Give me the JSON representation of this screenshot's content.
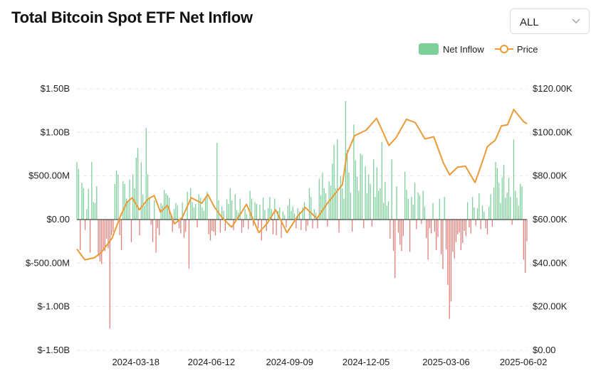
{
  "title": "Total Bitcoin Spot ETF Net Inflow",
  "range_select": {
    "value": "ALL",
    "icon": "chevron-down-icon"
  },
  "legend": {
    "net_inflow": "Net Inflow",
    "price": "Price"
  },
  "colors": {
    "inflow": "#7ccf99",
    "outflow": "#e07d78",
    "price": "#eb9a35",
    "grid": "#e5e7eb"
  },
  "chart_data": {
    "type": "bar",
    "x_tick_labels": [
      "2024-03-18",
      "2024-06-12",
      "2024-09-09",
      "2024-12-05",
      "2025-03-06",
      "2025-06-02"
    ],
    "x_range": [
      "2024-01-11",
      "2025-06-06"
    ],
    "y_left": {
      "label": "",
      "ticks": [
        "$1.50B",
        "$1.00B",
        "$500.00M",
        "$0.00",
        "$-500.00M",
        "$-1.00B",
        "$-1.50B"
      ],
      "range": [
        -1.5,
        1.5
      ],
      "unit": "B USD"
    },
    "y_right": {
      "label": "",
      "ticks": [
        "$120.00K",
        "$100.00K",
        "$80.00K",
        "$60.00K",
        "$40.00K",
        "$20.00K",
        "$0.00"
      ],
      "range": [
        0,
        120
      ],
      "unit": "K USD"
    },
    "grid": true,
    "legend_position": "top-right",
    "series": [
      {
        "name": "Net Inflow",
        "type": "bar",
        "date_range": [
          "2024-01-11",
          "2025-06-06"
        ],
        "values": [
          0.66,
          0.58,
          -0.35,
          0.42,
          0.36,
          -0.12,
          0.12,
          0.35,
          -0.38,
          0.66,
          0.2,
          0.19,
          0.38,
          -0.42,
          -0.48,
          -0.51,
          -0.35,
          -0.36,
          -0.22,
          -0.33,
          -1.25,
          -0.18,
          -0.14,
          0.41,
          0.56,
          0.52,
          -0.18,
          -0.35,
          0.44,
          0.41,
          0.24,
          0.22,
          0.46,
          -0.26,
          0.52,
          0.36,
          0.71,
          0.82,
          -0.18,
          0.66,
          0.29,
          0.16,
          1.05,
          0.52,
          0.24,
          -0.06,
          -0.26,
          0.22,
          -0.38,
          -0.1,
          -0.18,
          0.19,
          0.16,
          0.34,
          0.3,
          0.28,
          0.25,
          0.06,
          -0.14,
          0.12,
          0.19,
          0.16,
          -0.1,
          -0.16,
          0.2,
          -0.21,
          -0.14,
          0.32,
          -0.56,
          0.36,
          0.2,
          0.14,
          0.18,
          -0.09,
          0.29,
          0.25,
          0.14,
          0.1,
          0.25,
          0.32,
          -0.17,
          -0.24,
          -0.13,
          -0.14,
          -0.18,
          0.88,
          0.22,
          -0.15,
          0.15,
          0.1,
          -0.13,
          0.23,
          0.18,
          0.36,
          0.22,
          -0.12,
          0.29,
          0.11,
          0.08,
          0.24,
          -0.15,
          -0.09,
          0.12,
          0.06,
          -0.11,
          0.33,
          0.24,
          -0.07,
          0.2,
          0.18,
          -0.1,
          0.17,
          -0.24,
          0.25,
          0.11,
          -0.13,
          0.13,
          0.26,
          0.12,
          -0.17,
          0.24,
          -0.18,
          0.1,
          0.14,
          -0.21,
          0.09,
          0.05,
          -0.09,
          0.16,
          0.24,
          0.1,
          0.15,
          0.07,
          -0.1,
          0.13,
          0.09,
          -0.12,
          0.14,
          0.2,
          -0.13,
          -0.07,
          0.36,
          0.26,
          -0.1,
          0.12,
          0.08,
          -0.1,
          0.47,
          0.28,
          0.54,
          0.36,
          0.3,
          -0.08,
          0.44,
          0.39,
          0.64,
          0.86,
          0.36,
          0.92,
          -0.15,
          0.5,
          0.36,
          0.24,
          1.36,
          0.8,
          0.54,
          0.31,
          -0.14,
          1.09,
          0.68,
          0.49,
          0.33,
          0.76,
          0.74,
          -0.1,
          0.61,
          0.3,
          0.52,
          0.41,
          -0.08,
          0.69,
          0.26,
          0.6,
          0.33,
          0.36,
          0.89,
          0.19,
          0.43,
          0.16,
          0.21,
          -0.22,
          0.69,
          -0.36,
          -0.67,
          0.38,
          -0.15,
          -0.29,
          -0.36,
          -0.19,
          0.55,
          0.34,
          0.24,
          -0.37,
          0.26,
          0.17,
          0.42,
          -0.11,
          0.31,
          0.28,
          -0.05,
          0.33,
          0.15,
          -0.21,
          -0.46,
          -0.1,
          -0.16,
          0.19,
          -0.14,
          -0.35,
          -0.2,
          0.24,
          -0.4,
          -0.57,
          0.26,
          -0.34,
          -0.75,
          -1.14,
          -0.94,
          -0.37,
          -0.45,
          -0.26,
          -0.17,
          -0.15,
          -0.35,
          -0.27,
          -0.13,
          -0.19,
          0.2,
          -0.09,
          -0.16,
          0.26,
          0.14,
          -0.07,
          0.13,
          0.3,
          -0.11,
          0.16,
          0.09,
          -0.1,
          -0.17,
          0.15,
          0.29,
          -0.08,
          0.37,
          0.66,
          0.59,
          0.42,
          0.19,
          0.48,
          0.63,
          0.25,
          0.31,
          0.48,
          0.26,
          -0.06,
          0.92,
          0.33,
          0.25,
          0.16,
          0.41,
          0.38,
          -0.46,
          -0.61,
          -0.25
        ]
      },
      {
        "name": "Price",
        "type": "line",
        "x": [
          "2024-01-11",
          "2024-01-20",
          "2024-01-31",
          "2024-02-08",
          "2024-02-20",
          "2024-03-01",
          "2024-03-08",
          "2024-03-14",
          "2024-03-22",
          "2024-04-01",
          "2024-04-08",
          "2024-04-15",
          "2024-04-23",
          "2024-05-01",
          "2024-05-10",
          "2024-05-20",
          "2024-06-01",
          "2024-06-08",
          "2024-06-15",
          "2024-06-24",
          "2024-07-05",
          "2024-07-15",
          "2024-07-22",
          "2024-08-05",
          "2024-08-15",
          "2024-08-24",
          "2024-09-06",
          "2024-09-18",
          "2024-09-27",
          "2024-10-10",
          "2024-10-22",
          "2024-10-31",
          "2024-11-08",
          "2024-11-13",
          "2024-11-22",
          "2024-12-05",
          "2024-12-17",
          "2024-12-31",
          "2025-01-08",
          "2025-01-20",
          "2025-01-30",
          "2025-02-10",
          "2025-02-20",
          "2025-03-03",
          "2025-03-10",
          "2025-03-19",
          "2025-03-28",
          "2025-04-08",
          "2025-04-15",
          "2025-04-22",
          "2025-05-01",
          "2025-05-08",
          "2025-05-15",
          "2025-05-22",
          "2025-06-02",
          "2025-06-06"
        ],
        "values": [
          46.5,
          41.5,
          42.5,
          45.0,
          51.5,
          62.0,
          68.0,
          70.0,
          64.5,
          69.5,
          71.0,
          63.5,
          66.5,
          58.0,
          61.0,
          70.0,
          67.5,
          71.5,
          66.0,
          61.0,
          56.5,
          62.5,
          67.0,
          54.0,
          58.5,
          64.5,
          54.0,
          61.5,
          65.5,
          60.5,
          67.5,
          72.0,
          76.0,
          90.0,
          98.5,
          101.0,
          106.5,
          94.0,
          97.5,
          106.0,
          104.5,
          97.0,
          98.0,
          86.0,
          80.5,
          84.0,
          84.5,
          77.0,
          85.0,
          93.5,
          96.5,
          103.0,
          103.5,
          110.5,
          105.0,
          104.0
        ]
      }
    ]
  }
}
